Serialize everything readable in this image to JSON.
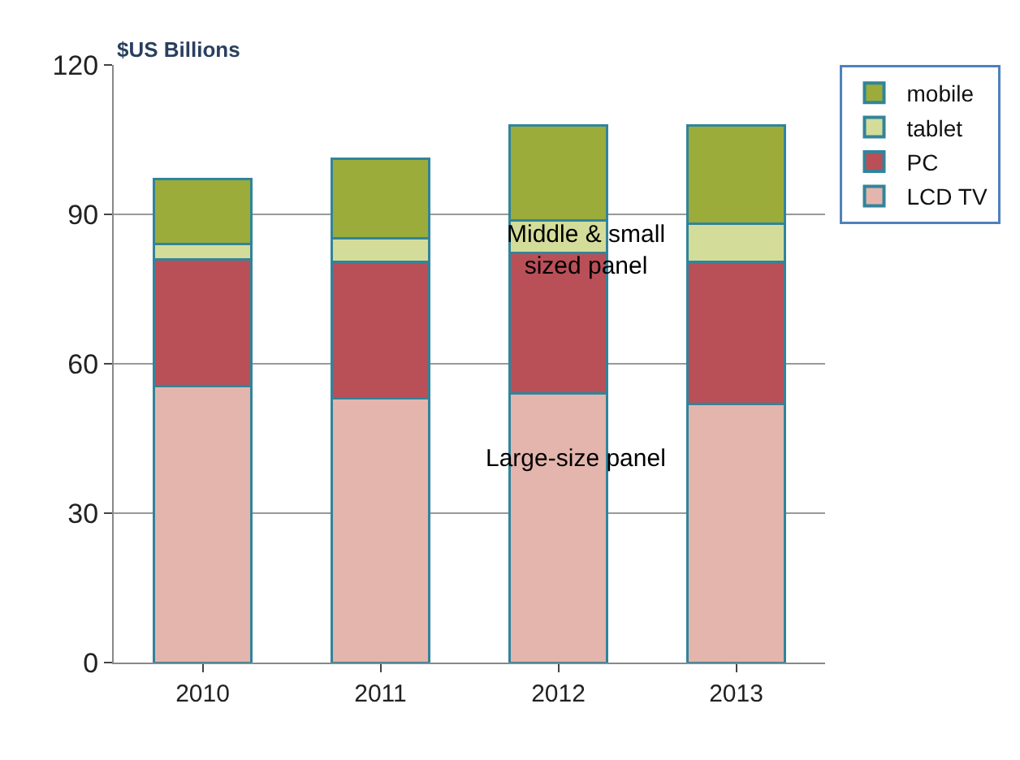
{
  "chart_data": {
    "type": "bar",
    "stacked": true,
    "ylabel": "$US Billions",
    "categories": [
      "2010",
      "2011",
      "2012",
      "2013"
    ],
    "series": [
      {
        "name": "LCD TV",
        "color": "#e3b5ad",
        "values": [
          55.5,
          53.0,
          54.1,
          51.9
        ]
      },
      {
        "name": "PC",
        "color": "#b94f57",
        "values": [
          25.4,
          27.4,
          28.2,
          28.5
        ]
      },
      {
        "name": "tablet",
        "color": "#d4dc9a",
        "values": [
          3.1,
          4.8,
          6.4,
          7.7
        ]
      },
      {
        "name": "mobile",
        "color": "#9bac3a",
        "values": [
          13.1,
          15.9,
          19.2,
          19.8
        ]
      }
    ],
    "ylim": [
      0,
      120
    ],
    "yticks": [
      0,
      30,
      60,
      90,
      120
    ],
    "grid": "y",
    "legend": "right",
    "annotations": [
      "Middle & small sized panel",
      "Large-size panel"
    ]
  }
}
